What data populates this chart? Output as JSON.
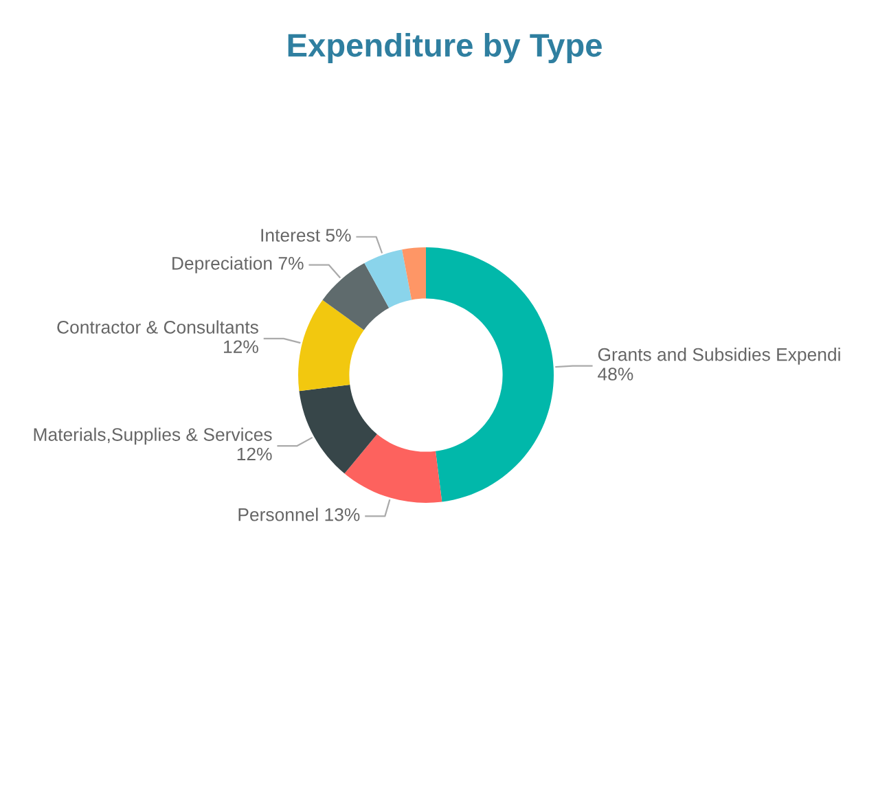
{
  "chart_data": {
    "type": "donut",
    "title": "Expenditure by Type",
    "categories": [
      "Grants and Subsidies Expendi",
      "Personnel",
      "Materials,Supplies & Services",
      "Contractor & Consultants",
      "Depreciation",
      "Interest",
      null
    ],
    "values": [
      48,
      13,
      12,
      12,
      7,
      5,
      3
    ],
    "value_labels": [
      "48%",
      "13%",
      "12%",
      "12%",
      "7%",
      "5%",
      null
    ],
    "colors": [
      "#01b8aa",
      "#fd625e",
      "#374649",
      "#f2c80f",
      "#5f6b6d",
      "#8ad4eb",
      "#fe9666"
    ]
  }
}
